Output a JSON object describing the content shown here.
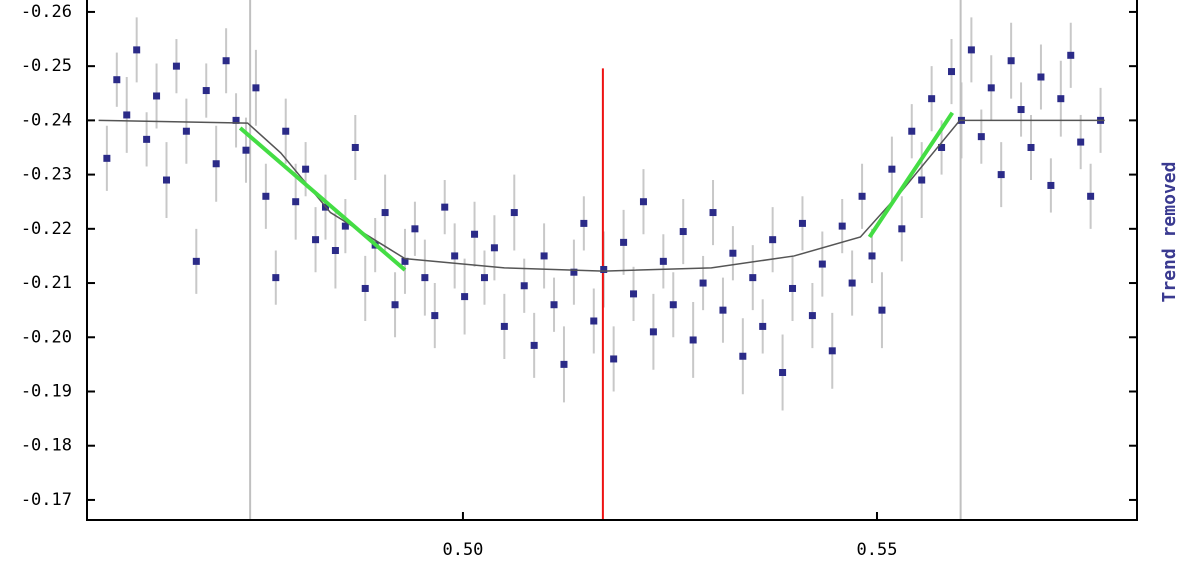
{
  "chart_data": {
    "type": "scatter",
    "y2_label": "Trend removed",
    "xlim": [
      0.4546,
      0.5814
    ],
    "ylim": [
      -0.1663,
      -0.2622
    ],
    "xticks": [
      {
        "value": 0.5,
        "label": "0.50"
      },
      {
        "value": 0.55,
        "label": "0.55"
      }
    ],
    "yticks": [
      -0.26,
      -0.25,
      -0.24,
      -0.23,
      -0.22,
      -0.21,
      {
        "value": -0.2,
        "label": "-0.20"
      },
      -0.19,
      -0.18,
      -0.17
    ],
    "color": "#2b2b88",
    "error_color": "#c8c8c8",
    "x": [
      0.457,
      0.4582,
      0.4594,
      0.4606,
      0.4618,
      0.463,
      0.4642,
      0.4654,
      0.4666,
      0.4678,
      0.469,
      0.4702,
      0.4714,
      0.4726,
      0.4738,
      0.475,
      0.4762,
      0.4774,
      0.4786,
      0.4798,
      0.481,
      0.4822,
      0.4834,
      0.4846,
      0.4858,
      0.487,
      0.4882,
      0.4894,
      0.4906,
      0.4918,
      0.493,
      0.4942,
      0.4954,
      0.4966,
      0.4978,
      0.499,
      0.5002,
      0.5014,
      0.5026,
      0.5038,
      0.505,
      0.5062,
      0.5074,
      0.5086,
      0.5098,
      0.511,
      0.5122,
      0.5134,
      0.5146,
      0.5158,
      0.517,
      0.5182,
      0.5194,
      0.5206,
      0.5218,
      0.523,
      0.5242,
      0.5254,
      0.5266,
      0.5278,
      0.529,
      0.5302,
      0.5314,
      0.5326,
      0.5338,
      0.535,
      0.5362,
      0.5374,
      0.5386,
      0.5398,
      0.541,
      0.5422,
      0.5434,
      0.5446,
      0.5458,
      0.547,
      0.5482,
      0.5494,
      0.5506,
      0.5518,
      0.553,
      0.5542,
      0.5554,
      0.5566,
      0.5578,
      0.559,
      0.5602,
      0.5614,
      0.5626,
      0.5638,
      0.565,
      0.5662,
      0.5674,
      0.5686,
      0.5698,
      0.571,
      0.5722,
      0.5734,
      0.5746,
      0.5758,
      0.577
    ],
    "values": [
      -0.233,
      -0.2475,
      -0.241,
      -0.253,
      -0.2365,
      -0.2445,
      -0.229,
      -0.25,
      -0.238,
      -0.214,
      -0.2455,
      -0.232,
      -0.251,
      -0.24,
      -0.2345,
      -0.246,
      -0.226,
      -0.211,
      -0.238,
      -0.225,
      -0.231,
      -0.218,
      -0.224,
      -0.216,
      -0.2205,
      -0.235,
      -0.209,
      -0.217,
      -0.223,
      -0.206,
      -0.214,
      -0.22,
      -0.211,
      -0.204,
      -0.224,
      -0.215,
      -0.2075,
      -0.219,
      -0.211,
      -0.2165,
      -0.202,
      -0.223,
      -0.2095,
      -0.1985,
      -0.215,
      -0.206,
      -0.195,
      -0.212,
      -0.221,
      -0.203,
      -0.2125,
      -0.196,
      -0.2175,
      -0.208,
      -0.225,
      -0.201,
      -0.214,
      -0.206,
      -0.2195,
      -0.1995,
      -0.21,
      -0.223,
      -0.205,
      -0.2155,
      -0.1965,
      -0.211,
      -0.202,
      -0.218,
      -0.1935,
      -0.209,
      -0.221,
      -0.204,
      -0.2135,
      -0.1975,
      -0.2205,
      -0.21,
      -0.226,
      -0.215,
      -0.205,
      -0.231,
      -0.22,
      -0.238,
      -0.229,
      -0.244,
      -0.235,
      -0.249,
      -0.24,
      -0.253,
      -0.237,
      -0.246,
      -0.23,
      -0.251,
      -0.242,
      -0.235,
      -0.248,
      -0.228,
      -0.244,
      -0.252,
      -0.236,
      -0.226,
      -0.24
    ],
    "errors": [
      0.006,
      0.005,
      0.007,
      0.006,
      0.005,
      0.006,
      0.007,
      0.005,
      0.006,
      0.006,
      0.005,
      0.007,
      0.006,
      0.005,
      0.006,
      0.007,
      0.006,
      0.005,
      0.006,
      0.007,
      0.005,
      0.006,
      0.006,
      0.007,
      0.005,
      0.006,
      0.006,
      0.005,
      0.007,
      0.006,
      0.006,
      0.005,
      0.007,
      0.006,
      0.005,
      0.006,
      0.007,
      0.006,
      0.005,
      0.006,
      0.006,
      0.007,
      0.005,
      0.006,
      0.006,
      0.005,
      0.007,
      0.006,
      0.005,
      0.006,
      0.007,
      0.006,
      0.006,
      0.005,
      0.006,
      0.007,
      0.005,
      0.006,
      0.006,
      0.007,
      0.005,
      0.006,
      0.006,
      0.005,
      0.007,
      0.006,
      0.005,
      0.006,
      0.007,
      0.006,
      0.005,
      0.006,
      0.006,
      0.007,
      0.005,
      0.006,
      0.006,
      0.005,
      0.007,
      0.006,
      0.006,
      0.005,
      0.007,
      0.006,
      0.005,
      0.006,
      0.007,
      0.006,
      0.005,
      0.006,
      0.006,
      0.007,
      0.005,
      0.006,
      0.006,
      0.005,
      0.007,
      0.006,
      0.005,
      0.006,
      0.006
    ],
    "lines": [
      {
        "color": "#c0c0c0",
        "x": [
          0.4743,
          0.4743
        ],
        "values": [
          -0.2622,
          -0.1663
        ]
      },
      {
        "color": "#c0c0c0",
        "x": [
          0.5601,
          0.5601
        ],
        "values": [
          -0.2622,
          -0.1663
        ]
      },
      {
        "color": "#ee1111",
        "x": [
          0.5169,
          0.5169
        ],
        "values": [
          -0.2496,
          -0.1663
        ]
      },
      {
        "color": "#555555",
        "x": [
          0.456,
          0.474,
          0.478,
          0.484,
          0.493,
          0.505,
          0.517,
          0.53,
          0.54,
          0.548,
          0.553,
          0.56,
          0.5775
        ],
        "values": [
          -0.24,
          -0.2395,
          -0.234,
          -0.223,
          -0.2145,
          -0.2128,
          -0.2122,
          -0.2128,
          -0.215,
          -0.2185,
          -0.227,
          -0.24,
          -0.24
        ]
      },
      {
        "color": "#44dd44",
        "x": [
          0.4731,
          0.493
        ],
        "values": [
          -0.2386,
          -0.2124
        ]
      },
      {
        "color": "#44dd44",
        "x": [
          0.5491,
          0.5591
        ],
        "values": [
          -0.2185,
          -0.2414
        ]
      }
    ]
  }
}
